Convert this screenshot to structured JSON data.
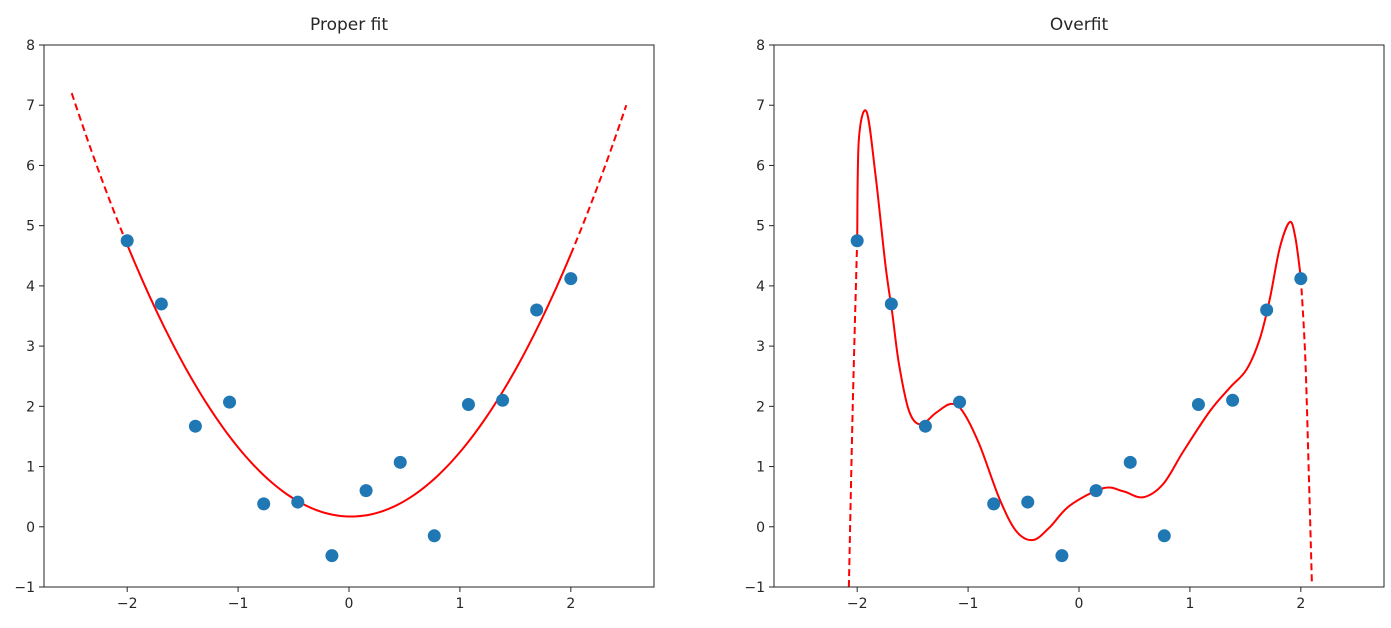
{
  "chart_data": [
    {
      "type": "scatter",
      "title": "Proper fit",
      "xlim": [
        -2.75,
        2.75
      ],
      "ylim": [
        -1,
        8
      ],
      "xticks": [
        -2,
        -1,
        0,
        1,
        2
      ],
      "xtick_labels": [
        "−2",
        "−1",
        "0",
        "1",
        "2"
      ],
      "yticks": [
        -1,
        0,
        1,
        2,
        3,
        4,
        5,
        6,
        7,
        8
      ],
      "ytick_labels": [
        "−1",
        "0",
        "1",
        "2",
        "3",
        "4",
        "5",
        "6",
        "7",
        "8"
      ],
      "grid": false,
      "points": {
        "color": "#1f77b4",
        "x": [
          -2.0,
          -1.692,
          -1.385,
          -1.077,
          -0.769,
          -0.462,
          -0.154,
          0.154,
          0.462,
          0.769,
          1.077,
          1.385,
          1.692,
          2.0
        ],
        "y": [
          4.75,
          3.7,
          1.67,
          2.07,
          0.38,
          0.41,
          -0.48,
          0.6,
          1.07,
          -0.15,
          2.03,
          2.1,
          3.6,
          4.12
        ]
      },
      "fit": {
        "color": "#ff0000",
        "kind": "quadratic",
        "coefficients": [
          1.109,
          -0.04,
          0.17
        ],
        "solid_range": [
          -2,
          2
        ],
        "dashed_range": [
          -2.5,
          2.5
        ]
      }
    },
    {
      "type": "scatter",
      "title": "Overfit",
      "xlim": [
        -2.75,
        2.75
      ],
      "ylim": [
        -1,
        8
      ],
      "xticks": [
        -2,
        -1,
        0,
        1,
        2
      ],
      "xtick_labels": [
        "−2",
        "−1",
        "0",
        "1",
        "2"
      ],
      "yticks": [
        -1,
        0,
        1,
        2,
        3,
        4,
        5,
        6,
        7,
        8
      ],
      "ytick_labels": [
        "−1",
        "0",
        "1",
        "2",
        "3",
        "4",
        "5",
        "6",
        "7",
        "8"
      ],
      "grid": false,
      "points": {
        "color": "#1f77b4",
        "x": [
          -2.0,
          -1.692,
          -1.385,
          -1.077,
          -0.769,
          -0.462,
          -0.154,
          0.154,
          0.462,
          0.769,
          1.077,
          1.385,
          1.692,
          2.0
        ],
        "y": [
          4.75,
          3.7,
          1.67,
          2.07,
          0.38,
          0.41,
          -0.48,
          0.6,
          1.07,
          -0.15,
          2.03,
          2.1,
          3.6,
          4.12
        ]
      },
      "fit": {
        "color": "#ff0000",
        "kind": "high-degree polynomial",
        "dashed_left": {
          "x": [
            -2.075,
            -2.04,
            -2.0
          ],
          "y": [
            -1,
            2.0,
            4.77
          ]
        },
        "solid": {
          "x": [
            -2.0,
            -1.985,
            -1.915,
            -1.834,
            -1.744,
            -1.683,
            -1.623,
            -1.532,
            -1.427,
            -1.291,
            -1.155,
            -1.05,
            -0.899,
            -0.718,
            -0.567,
            -0.416,
            -0.265,
            -0.084,
            0.217,
            0.398,
            0.578,
            0.759,
            0.94,
            1.18,
            1.36,
            1.51,
            1.63,
            1.72,
            1.81,
            1.9,
            1.95,
            2.0
          ],
          "y": [
            4.77,
            6.43,
            6.89,
            5.83,
            4.33,
            3.54,
            2.7,
            1.92,
            1.7,
            1.89,
            2.04,
            1.92,
            1.37,
            0.47,
            -0.07,
            -0.22,
            -0.01,
            0.35,
            0.64,
            0.59,
            0.49,
            0.71,
            1.25,
            1.92,
            2.31,
            2.61,
            3.12,
            3.78,
            4.63,
            5.06,
            4.81,
            4.14
          ]
        },
        "dashed_right": {
          "x": [
            2.0,
            2.04,
            2.07,
            2.1
          ],
          "y": [
            4.14,
            2.82,
            1.01,
            -0.94
          ]
        }
      }
    }
  ]
}
